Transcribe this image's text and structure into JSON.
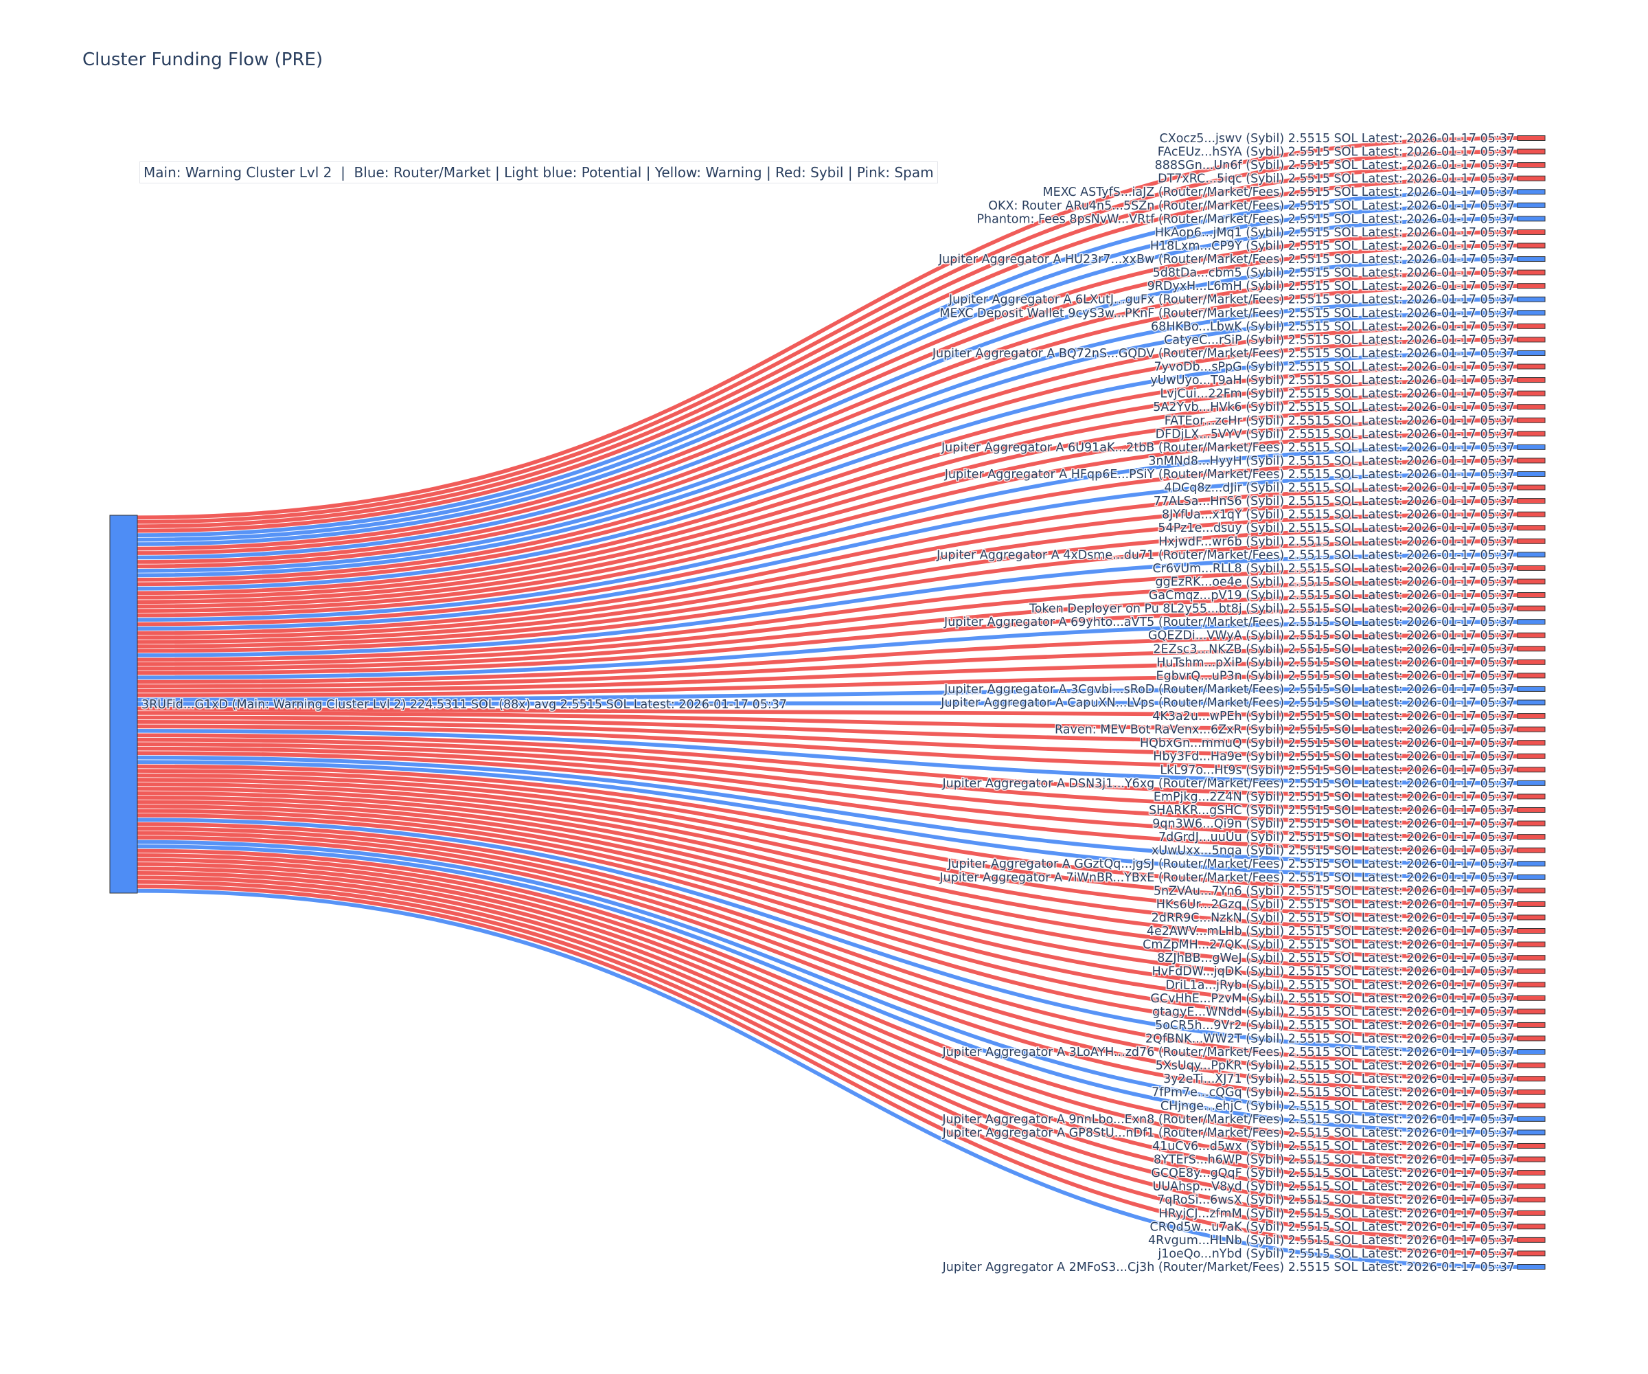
{
  "title": "Cluster Funding Flow (PRE)",
  "legend_text": "Main: Warning Cluster Lvl 2  |  Blue: Router/Market | Light blue: Potential | Yellow: Warning | Red: Sybil | Pink: Spam",
  "colors": {
    "router": "#4e8df5",
    "sybil": "#ef5350",
    "main": "#4e8df5",
    "text": "#2a3f5f"
  },
  "chart_data": {
    "type": "sankey",
    "source": {
      "label": "3RUFid...G1xD (Main: Warning Cluster Lvl 2) 224.5311 SOL (88x) avg 2.5515 SOL Latest: 2026-01-17 05:37",
      "total_sol": 224.5311,
      "count": 88,
      "avg_sol": 2.5515
    },
    "link_value_sol": 2.5515,
    "targets": [
      {
        "label": "CXocz5...jswv (Sybil) 2.5515 SOL Latest: 2026-01-17 05:37",
        "type": "sybil"
      },
      {
        "label": "FAcEUz...hSYA (Sybil) 2.5515 SOL Latest: 2026-01-17 05:37",
        "type": "sybil"
      },
      {
        "label": "888SGn...Un6f (Sybil) 2.5515 SOL Latest: 2026-01-17 05:37",
        "type": "sybil"
      },
      {
        "label": "DT7xRC...5iqc (Sybil) 2.5515 SOL Latest: 2026-01-17 05:37",
        "type": "sybil"
      },
      {
        "label": "MEXC ASTyfS...iaJZ (Router/Market/Fees) 2.5515 SOL Latest: 2026-01-17 05:37",
        "type": "router"
      },
      {
        "label": "OKX: Router ARu4n5...5SZn (Router/Market/Fees) 2.5515 SOL Latest: 2026-01-17 05:37",
        "type": "router"
      },
      {
        "label": "Phantom: Fees 8psNvW...VRtf (Router/Market/Fees) 2.5515 SOL Latest: 2026-01-17 05:37",
        "type": "router"
      },
      {
        "label": "HkAop6...jMq1 (Sybil) 2.5515 SOL Latest: 2026-01-17 05:37",
        "type": "sybil"
      },
      {
        "label": "H18Lxm...CP9Y (Sybil) 2.5515 SOL Latest: 2026-01-17 05:37",
        "type": "sybil"
      },
      {
        "label": "Jupiter Aggregator A HU23r7...xxBw (Router/Market/Fees) 2.5515 SOL Latest: 2026-01-17 05:37",
        "type": "router"
      },
      {
        "label": "5d8tDa...cbm5 (Sybil) 2.5515 SOL Latest: 2026-01-17 05:37",
        "type": "sybil"
      },
      {
        "label": "9RDyxH...L6mH (Sybil) 2.5515 SOL Latest: 2026-01-17 05:37",
        "type": "sybil"
      },
      {
        "label": "Jupiter Aggregator A 6LXutJ...guFx (Router/Market/Fees) 2.5515 SOL Latest: 2026-01-17 05:37",
        "type": "router"
      },
      {
        "label": "MEXC Deposit Wallet 9cyS3w...PKnF (Router/Market/Fees) 2.5515 SOL Latest: 2026-01-17 05:37",
        "type": "router"
      },
      {
        "label": "68HKBo...LbwK (Sybil) 2.5515 SOL Latest: 2026-01-17 05:37",
        "type": "sybil"
      },
      {
        "label": "CatyeC...rSiP (Sybil) 2.5515 SOL Latest: 2026-01-17 05:37",
        "type": "sybil"
      },
      {
        "label": "Jupiter Aggregator A BQ72nS...GQDV (Router/Market/Fees) 2.5515 SOL Latest: 2026-01-17 05:37",
        "type": "router"
      },
      {
        "label": "7yvoDb...sPpG (Sybil) 2.5515 SOL Latest: 2026-01-17 05:37",
        "type": "sybil"
      },
      {
        "label": "yUwUyo...T9aH (Sybil) 2.5515 SOL Latest: 2026-01-17 05:37",
        "type": "sybil"
      },
      {
        "label": "LvjCui...22Fm (Sybil) 2.5515 SOL Latest: 2026-01-17 05:37",
        "type": "sybil"
      },
      {
        "label": "5A2Yvb...HVk6 (Sybil) 2.5515 SOL Latest: 2026-01-17 05:37",
        "type": "sybil"
      },
      {
        "label": "FATEor...zcHr (Sybil) 2.5515 SOL Latest: 2026-01-17 05:37",
        "type": "sybil"
      },
      {
        "label": "DFDjLX...5VYV (Sybil) 2.5515 SOL Latest: 2026-01-17 05:37",
        "type": "sybil"
      },
      {
        "label": "Jupiter Aggregator A 6U91aK...2tbB (Router/Market/Fees) 2.5515 SOL Latest: 2026-01-17 05:37",
        "type": "router"
      },
      {
        "label": "3nMNd8...HyyH (Sybil) 2.5515 SOL Latest: 2026-01-17 05:37",
        "type": "sybil"
      },
      {
        "label": "Jupiter Aggregator A HFqp6E...PSiY (Router/Market/Fees) 2.5515 SOL Latest: 2026-01-17 05:37",
        "type": "router"
      },
      {
        "label": "4DCq8z...dJir (Sybil) 2.5515 SOL Latest: 2026-01-17 05:37",
        "type": "sybil"
      },
      {
        "label": "77ALSa...HnS6 (Sybil) 2.5515 SOL Latest: 2026-01-17 05:37",
        "type": "sybil"
      },
      {
        "label": "8JYfUa...x1qY (Sybil) 2.5515 SOL Latest: 2026-01-17 05:37",
        "type": "sybil"
      },
      {
        "label": "54Pz1e...dsuy (Sybil) 2.5515 SOL Latest: 2026-01-17 05:37",
        "type": "sybil"
      },
      {
        "label": "HxjwdF...wr6b (Sybil) 2.5515 SOL Latest: 2026-01-17 05:37",
        "type": "sybil"
      },
      {
        "label": "Jupiter Aggregator A 4xDsme...du71 (Router/Market/Fees) 2.5515 SOL Latest: 2026-01-17 05:37",
        "type": "router"
      },
      {
        "label": "Cr6vUm...RLL8 (Sybil) 2.5515 SOL Latest: 2026-01-17 05:37",
        "type": "sybil"
      },
      {
        "label": "ggEzRK...oe4e (Sybil) 2.5515 SOL Latest: 2026-01-17 05:37",
        "type": "sybil"
      },
      {
        "label": "GaCmqz...pV19 (Sybil) 2.5515 SOL Latest: 2026-01-17 05:37",
        "type": "sybil"
      },
      {
        "label": "Token Deployer on Pu 8L2y55...bt8j (Sybil) 2.5515 SOL Latest: 2026-01-17 05:37",
        "type": "sybil"
      },
      {
        "label": "Jupiter Aggregator A 69yhto...aVT5 (Router/Market/Fees) 2.5515 SOL Latest: 2026-01-17 05:37",
        "type": "router"
      },
      {
        "label": "GQEZDi...VWyA (Sybil) 2.5515 SOL Latest: 2026-01-17 05:37",
        "type": "sybil"
      },
      {
        "label": "2EZsc3...NKZB (Sybil) 2.5515 SOL Latest: 2026-01-17 05:37",
        "type": "sybil"
      },
      {
        "label": "HuTshm...pXiP (Sybil) 2.5515 SOL Latest: 2026-01-17 05:37",
        "type": "sybil"
      },
      {
        "label": "EgbvrQ...uP3n (Sybil) 2.5515 SOL Latest: 2026-01-17 05:37",
        "type": "sybil"
      },
      {
        "label": "Jupiter Aggregator A 3Cgvbi...sRoD (Router/Market/Fees) 2.5515 SOL Latest: 2026-01-17 05:37",
        "type": "router"
      },
      {
        "label": "Jupiter Aggregator A CapuXN...LVps (Router/Market/Fees) 2.5515 SOL Latest: 2026-01-17 05:37",
        "type": "router"
      },
      {
        "label": "4K3a2u...wPEh (Sybil) 2.5515 SOL Latest: 2026-01-17 05:37",
        "type": "sybil"
      },
      {
        "label": "Raven: MEV Bot RaVenx...6ZxR (Sybil) 2.5515 SOL Latest: 2026-01-17 05:37",
        "type": "sybil"
      },
      {
        "label": "HQbxGn...mmuQ (Sybil) 2.5515 SOL Latest: 2026-01-17 05:37",
        "type": "sybil"
      },
      {
        "label": "Hby3Fd...Ha9e (Sybil) 2.5515 SOL Latest: 2026-01-17 05:37",
        "type": "sybil"
      },
      {
        "label": "LkL97o...Ht9s (Sybil) 2.5515 SOL Latest: 2026-01-17 05:37",
        "type": "sybil"
      },
      {
        "label": "Jupiter Aggregator A DSN3j1...Y6xg (Router/Market/Fees) 2.5515 SOL Latest: 2026-01-17 05:37",
        "type": "router"
      },
      {
        "label": "EmPjkg...2Z4N (Sybil) 2.5515 SOL Latest: 2026-01-17 05:37",
        "type": "sybil"
      },
      {
        "label": "SHARKR...gSHC (Sybil) 2.5515 SOL Latest: 2026-01-17 05:37",
        "type": "sybil"
      },
      {
        "label": "9qn3W6...Qi9n (Sybil) 2.5515 SOL Latest: 2026-01-17 05:37",
        "type": "sybil"
      },
      {
        "label": "7dGrdJ...uuUu (Sybil) 2.5515 SOL Latest: 2026-01-17 05:37",
        "type": "sybil"
      },
      {
        "label": "xUwUxx...5nqa (Sybil) 2.5515 SOL Latest: 2026-01-17 05:37",
        "type": "sybil"
      },
      {
        "label": "Jupiter Aggregator A GGztQq...jgSJ (Router/Market/Fees) 2.5515 SOL Latest: 2026-01-17 05:37",
        "type": "router"
      },
      {
        "label": "Jupiter Aggregator A 7iWnBR...YBxE (Router/Market/Fees) 2.5515 SOL Latest: 2026-01-17 05:37",
        "type": "router"
      },
      {
        "label": "5nZVAu...7Yn6 (Sybil) 2.5515 SOL Latest: 2026-01-17 05:37",
        "type": "sybil"
      },
      {
        "label": "HKs6Ur...2Gzq (Sybil) 2.5515 SOL Latest: 2026-01-17 05:37",
        "type": "sybil"
      },
      {
        "label": "2dRR9C...NzkN (Sybil) 2.5515 SOL Latest: 2026-01-17 05:37",
        "type": "sybil"
      },
      {
        "label": "4e2AWV...mLHb (Sybil) 2.5515 SOL Latest: 2026-01-17 05:37",
        "type": "sybil"
      },
      {
        "label": "CmZpMH...27QK (Sybil) 2.5515 SOL Latest: 2026-01-17 05:37",
        "type": "sybil"
      },
      {
        "label": "8ZJhBB...gWeJ (Sybil) 2.5515 SOL Latest: 2026-01-17 05:37",
        "type": "sybil"
      },
      {
        "label": "HvFdDW...jqDK (Sybil) 2.5515 SOL Latest: 2026-01-17 05:37",
        "type": "sybil"
      },
      {
        "label": "DriL1a...jRyb (Sybil) 2.5515 SOL Latest: 2026-01-17 05:37",
        "type": "sybil"
      },
      {
        "label": "GCvHhE...PzvM (Sybil) 2.5515 SOL Latest: 2026-01-17 05:37",
        "type": "sybil"
      },
      {
        "label": "gtagyE...WNdd (Sybil) 2.5515 SOL Latest: 2026-01-17 05:37",
        "type": "sybil"
      },
      {
        "label": "5oCR5h...9Vr2 (Sybil) 2.5515 SOL Latest: 2026-01-17 05:37",
        "type": "sybil"
      },
      {
        "label": "2QfBNK...WW2T (Sybil) 2.5515 SOL Latest: 2026-01-17 05:37",
        "type": "sybil"
      },
      {
        "label": "Jupiter Aggregator A 3LoAYH...zd76 (Router/Market/Fees) 2.5515 SOL Latest: 2026-01-17 05:37",
        "type": "router"
      },
      {
        "label": "5XsUqy...PpKR (Sybil) 2.5515 SOL Latest: 2026-01-17 05:37",
        "type": "sybil"
      },
      {
        "label": "3y2eTi...XJ71 (Sybil) 2.5515 SOL Latest: 2026-01-17 05:37",
        "type": "sybil"
      },
      {
        "label": "7fPm7e...cQGq (Sybil) 2.5515 SOL Latest: 2026-01-17 05:37",
        "type": "sybil"
      },
      {
        "label": "CHjnge...ehjC (Sybil) 2.5515 SOL Latest: 2026-01-17 05:37",
        "type": "sybil"
      },
      {
        "label": "Jupiter Aggregator A 9nnLbo...Exn8 (Router/Market/Fees) 2.5515 SOL Latest: 2026-01-17 05:37",
        "type": "router"
      },
      {
        "label": "Jupiter Aggregator A GP8StU...nDf1 (Router/Market/Fees) 2.5515 SOL Latest: 2026-01-17 05:37",
        "type": "router"
      },
      {
        "label": "41uCv6...d5wx (Sybil) 2.5515 SOL Latest: 2026-01-17 05:37",
        "type": "sybil"
      },
      {
        "label": "8YTErS...h6WP (Sybil) 2.5515 SOL Latest: 2026-01-17 05:37",
        "type": "sybil"
      },
      {
        "label": "GCQE8y...gQqF (Sybil) 2.5515 SOL Latest: 2026-01-17 05:37",
        "type": "sybil"
      },
      {
        "label": "UUAhsp...V8yd (Sybil) 2.5515 SOL Latest: 2026-01-17 05:37",
        "type": "sybil"
      },
      {
        "label": "7qRoSi...6wsX (Sybil) 2.5515 SOL Latest: 2026-01-17 05:37",
        "type": "sybil"
      },
      {
        "label": "HRyjCJ...zfmM (Sybil) 2.5515 SOL Latest: 2026-01-17 05:37",
        "type": "sybil"
      },
      {
        "label": "CRQd5w...u7aK (Sybil) 2.5515 SOL Latest: 2026-01-17 05:37",
        "type": "sybil"
      },
      {
        "label": "4Rvgum...HLNb (Sybil) 2.5515 SOL Latest: 2026-01-17 05:37",
        "type": "sybil"
      },
      {
        "label": "j1oeQo...nYbd (Sybil) 2.5515 SOL Latest: 2026-01-17 05:37",
        "type": "sybil"
      },
      {
        "label": "Jupiter Aggregator A 2MFoS3...Cj3h (Router/Market/Fees) 2.5515 SOL Latest: 2026-01-17 05:37",
        "type": "router"
      }
    ]
  }
}
